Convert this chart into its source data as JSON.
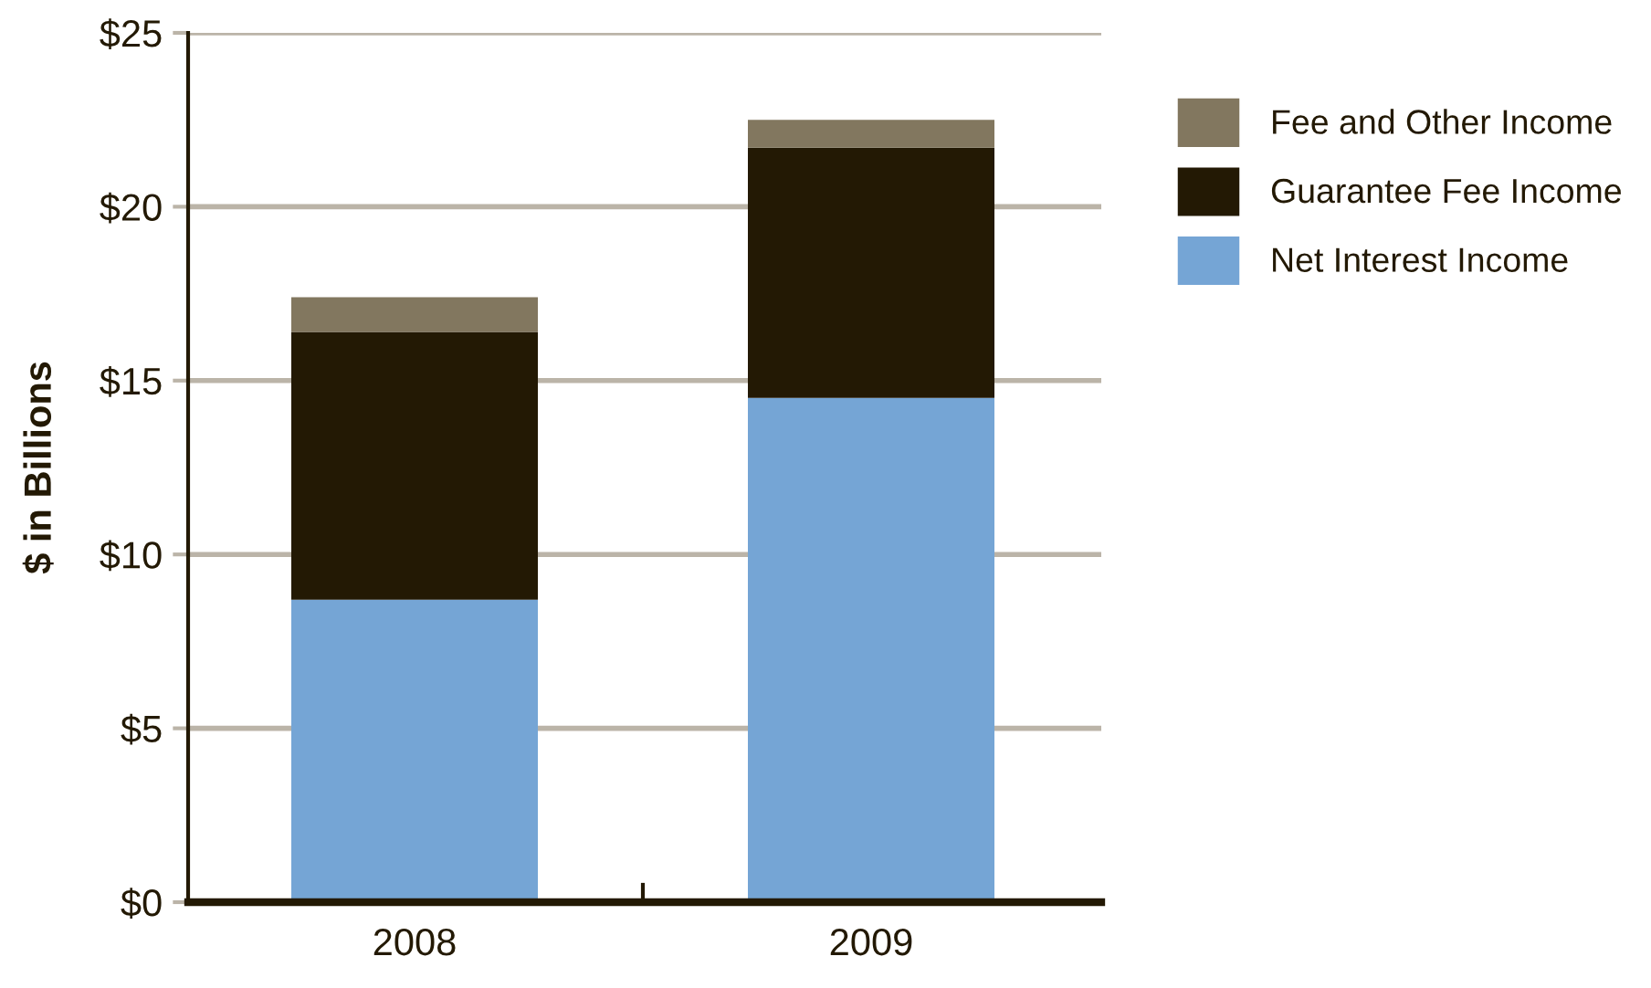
{
  "chart_data": {
    "type": "bar",
    "stacked": true,
    "ylabel": "$ in Billions",
    "categories": [
      "2008",
      "2009"
    ],
    "series": [
      {
        "name": "Net Interest Income",
        "color": "#75a5d5",
        "values": [
          8.7,
          14.5
        ]
      },
      {
        "name": "Guarantee Fee Income",
        "color": "#231904",
        "values": [
          7.7,
          7.2
        ]
      },
      {
        "name": "Fee and Other Income",
        "color": "#82775f",
        "values": [
          1.0,
          0.8
        ]
      }
    ],
    "ylim": [
      0,
      25
    ],
    "yticks": [
      {
        "value": 0,
        "label": "$0"
      },
      {
        "value": 5,
        "label": "$5"
      },
      {
        "value": 10,
        "label": "$10"
      },
      {
        "value": 15,
        "label": "$15"
      },
      {
        "value": 20,
        "label": "$20"
      },
      {
        "value": 25,
        "label": "$25"
      }
    ],
    "grid": "y",
    "legend": "right"
  }
}
